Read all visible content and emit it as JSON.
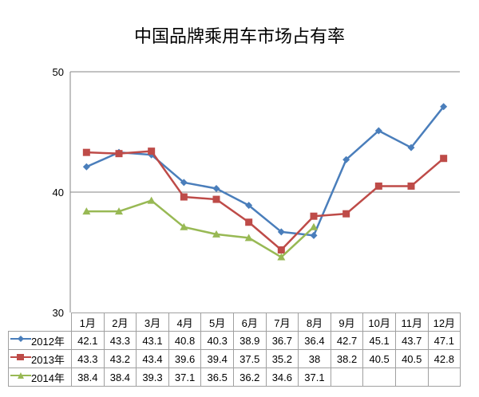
{
  "chart_data": {
    "type": "line",
    "title": "中国品牌乘用车市场占有率",
    "xlabel": "",
    "ylabel": "",
    "ylim": [
      30,
      50
    ],
    "yticks": [
      30,
      40,
      50
    ],
    "grid": true,
    "legend_position": "data-table",
    "categories": [
      "1月",
      "2月",
      "3月",
      "4月",
      "5月",
      "6月",
      "7月",
      "8月",
      "9月",
      "10月",
      "11月",
      "12月"
    ],
    "series": [
      {
        "name": "2012年",
        "color": "#4a7ebb",
        "marker": "diamond",
        "values": [
          42.1,
          43.3,
          43.1,
          40.8,
          40.3,
          38.9,
          36.7,
          36.4,
          42.7,
          45.1,
          43.7,
          47.1
        ]
      },
      {
        "name": "2013年",
        "color": "#be4b48",
        "marker": "square",
        "values": [
          43.3,
          43.2,
          43.4,
          39.6,
          39.4,
          37.5,
          35.2,
          38,
          38.2,
          40.5,
          40.5,
          42.8
        ]
      },
      {
        "name": "2014年",
        "color": "#98b954",
        "marker": "triangle",
        "values": [
          38.4,
          38.4,
          39.3,
          37.1,
          36.5,
          36.2,
          34.6,
          37.1,
          null,
          null,
          null,
          null
        ]
      }
    ]
  },
  "table": {
    "rows": [
      {
        "label": "2012年",
        "cells": [
          "42.1",
          "43.3",
          "43.1",
          "40.8",
          "40.3",
          "38.9",
          "36.7",
          "36.4",
          "42.7",
          "45.1",
          "43.7",
          "47.1"
        ]
      },
      {
        "label": "2013年",
        "cells": [
          "43.3",
          "43.2",
          "43.4",
          "39.6",
          "39.4",
          "37.5",
          "35.2",
          "38",
          "38.2",
          "40.5",
          "40.5",
          "42.8"
        ]
      },
      {
        "label": "2014年",
        "cells": [
          "38.4",
          "38.4",
          "39.3",
          "37.1",
          "36.5",
          "36.2",
          "34.6",
          "37.1",
          "",
          "",
          "",
          ""
        ]
      }
    ]
  }
}
